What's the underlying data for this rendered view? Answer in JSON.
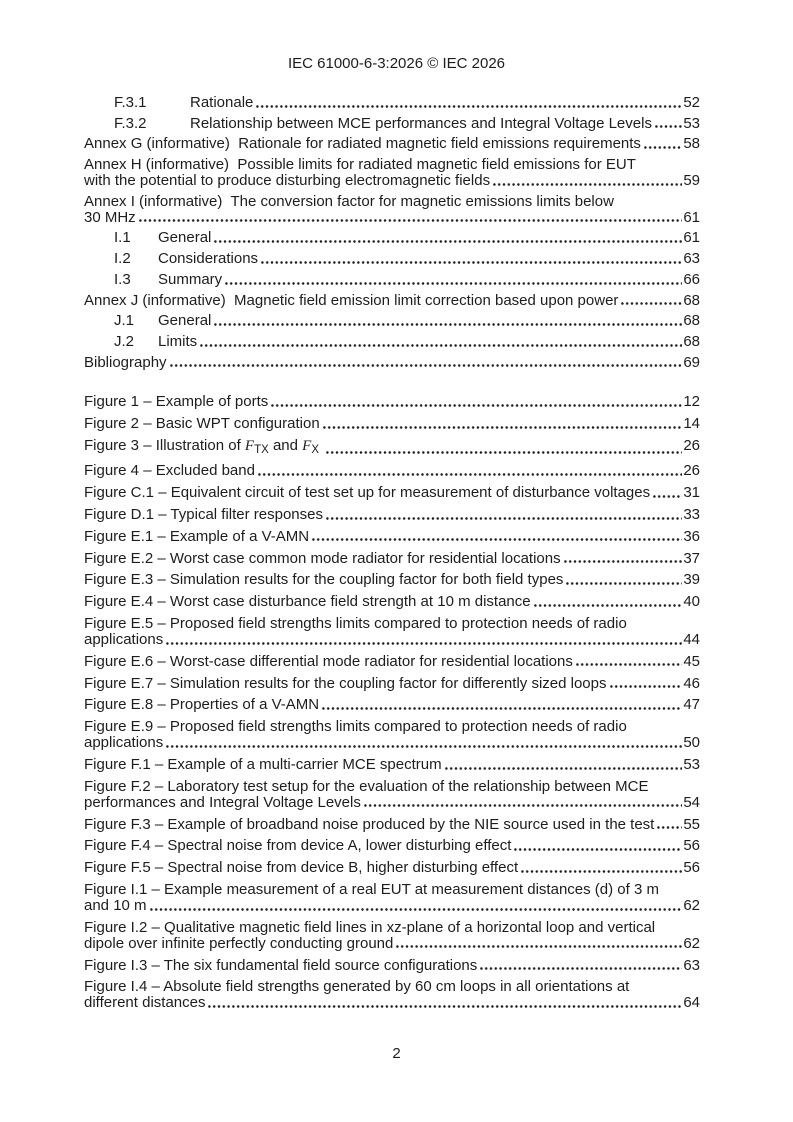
{
  "header": {
    "title": "IEC 61000-6-3:2026 © IEC 2026"
  },
  "footer": {
    "page_number": "2"
  },
  "colors": {
    "text": "#1d1d1d",
    "background": "#ffffff"
  },
  "toc": {
    "annex_section": [
      {
        "num": "F.3.1",
        "lines": [
          "Rationale"
        ],
        "page": "52"
      },
      {
        "num": "F.3.2",
        "lines": [
          "Relationship between MCE performances and Integral Voltage Levels"
        ],
        "page": "53"
      },
      {
        "lines": [
          "Annex G (informative)  Rationale for radiated magnetic field emissions requirements"
        ],
        "page": "58"
      },
      {
        "lines": [
          "Annex H (informative)  Possible limits for radiated magnetic field emissions for EUT",
          "with the potential to produce disturbing electromagnetic fields"
        ],
        "page": "59"
      },
      {
        "lines": [
          "Annex I (informative)  The conversion factor for magnetic emissions limits below",
          "30 MHz"
        ],
        "page": "61"
      },
      {
        "num": "I.1",
        "lines": [
          "General"
        ],
        "page": "61"
      },
      {
        "num": "I.2",
        "lines": [
          "Considerations"
        ],
        "page": "63"
      },
      {
        "num": "I.3",
        "lines": [
          "Summary"
        ],
        "page": "66"
      },
      {
        "lines": [
          "Annex J (informative)  Magnetic field emission limit correction based upon power"
        ],
        "page": "68"
      },
      {
        "num": "J.1",
        "lines": [
          "General"
        ],
        "page": "68"
      },
      {
        "num": "J.2",
        "lines": [
          "Limits"
        ],
        "page": "68"
      },
      {
        "lines": [
          "Bibliography"
        ],
        "page": "69"
      }
    ],
    "figures_section": [
      {
        "lines": [
          "Figure 1 – Example of ports"
        ],
        "page": "12"
      },
      {
        "lines": [
          "Figure 2 – Basic WPT configuration"
        ],
        "page": "14"
      },
      {
        "lines": [
          [
            {
              "t": "Figure 3 – Illustration of "
            },
            {
              "t": "F",
              "s": "var"
            },
            {
              "t": "TX",
              "s": "sub"
            },
            {
              "t": " and "
            },
            {
              "t": "F",
              "s": "var"
            },
            {
              "t": "X",
              "s": "sub"
            },
            {
              "t": " "
            }
          ]
        ],
        "page": "26"
      },
      {
        "lines": [
          "Figure 4 – Excluded band"
        ],
        "page": "26"
      },
      {
        "lines": [
          "Figure C.1 – Equivalent circuit of test set up for measurement of disturbance voltages"
        ],
        "page": "31"
      },
      {
        "lines": [
          "Figure D.1 – Typical filter responses"
        ],
        "page": "33"
      },
      {
        "lines": [
          "Figure E.1 – Example of a V-AMN"
        ],
        "page": "36"
      },
      {
        "lines": [
          "Figure E.2 – Worst case common mode radiator for residential locations"
        ],
        "page": "37"
      },
      {
        "lines": [
          "Figure E.3 – Simulation results for the coupling factor for both field types"
        ],
        "page": "39"
      },
      {
        "lines": [
          "Figure E.4 – Worst case disturbance field strength at 10 m distance"
        ],
        "page": "40"
      },
      {
        "lines": [
          "Figure E.5 – Proposed field strengths limits compared to protection needs of radio",
          "applications"
        ],
        "page": "44"
      },
      {
        "lines": [
          "Figure E.6 – Worst-case differential mode radiator for residential locations"
        ],
        "page": "45"
      },
      {
        "lines": [
          "Figure E.7 – Simulation results for the coupling factor for differently sized loops"
        ],
        "page": "46"
      },
      {
        "lines": [
          "Figure E.8 – Properties of a V-AMN"
        ],
        "page": "47"
      },
      {
        "lines": [
          "Figure E.9 – Proposed field strengths limits compared to protection needs of radio",
          "applications"
        ],
        "page": "50"
      },
      {
        "lines": [
          "Figure F.1 – Example of a multi-carrier MCE spectrum"
        ],
        "page": "53"
      },
      {
        "lines": [
          "Figure F.2 – Laboratory test setup for the evaluation of the relationship between MCE",
          "performances and Integral Voltage Levels"
        ],
        "page": "54"
      },
      {
        "lines": [
          "Figure F.3 – Example of broadband noise produced by the NIE source used in the test"
        ],
        "page": "55"
      },
      {
        "lines": [
          "Figure F.4 – Spectral noise from device A, lower disturbing effect"
        ],
        "page": "56"
      },
      {
        "lines": [
          "Figure F.5 – Spectral noise from device B, higher disturbing effect"
        ],
        "page": "56"
      },
      {
        "lines": [
          "Figure I.1 – Example measurement of a real EUT at measurement distances (d) of 3 m",
          "and 10 m"
        ],
        "page": "62"
      },
      {
        "lines": [
          "Figure I.2 – Qualitative magnetic field lines in xz-plane of a horizontal loop and vertical",
          "dipole over infinite perfectly conducting ground"
        ],
        "page": "62"
      },
      {
        "lines": [
          "Figure I.3 – The six fundamental field source configurations"
        ],
        "page": "63"
      },
      {
        "lines": [
          "Figure I.4 – Absolute field strengths generated by 60 cm loops in all orientations at",
          "different distances"
        ],
        "page": "64"
      }
    ]
  }
}
